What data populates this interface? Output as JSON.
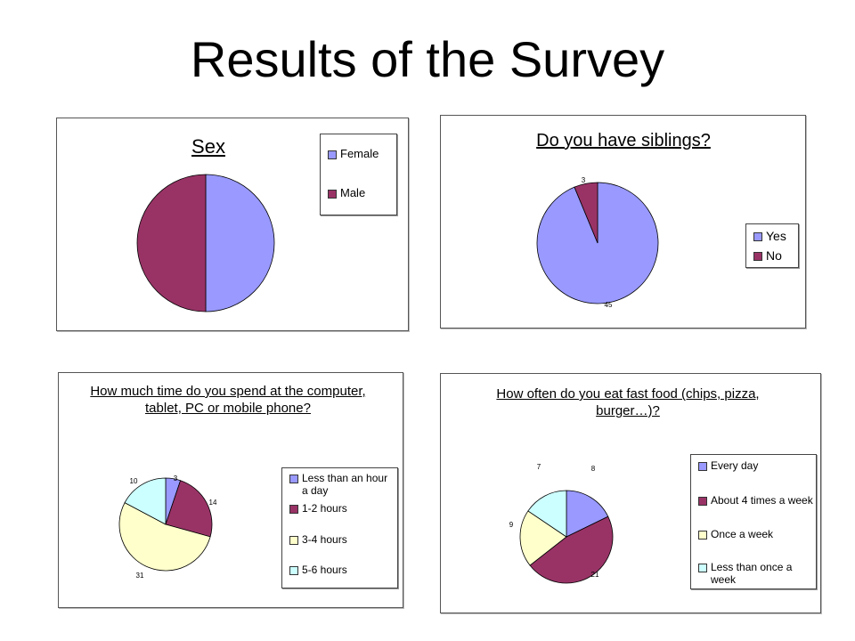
{
  "page": {
    "title": "Results of the Survey"
  },
  "chart_data": [
    {
      "type": "pie",
      "title": "Sex",
      "categories": [
        "Female",
        "Male"
      ],
      "values": [
        50,
        50
      ],
      "colors": [
        "#9999ff",
        "#993366"
      ],
      "data_labels": [
        "",
        ""
      ],
      "legend": "right"
    },
    {
      "type": "pie",
      "title": "Do you have siblings?",
      "categories": [
        "Yes",
        "No"
      ],
      "values": [
        45,
        3
      ],
      "colors": [
        "#9999ff",
        "#993366"
      ],
      "data_labels": [
        "45",
        "3"
      ],
      "legend": "right"
    },
    {
      "type": "pie",
      "title": "How much time do you spend at the computer, tablet, PC or mobile phone?",
      "categories": [
        "Less than an hour a day",
        "1-2 hours",
        "3-4 hours",
        "5-6 hours"
      ],
      "values": [
        3,
        14,
        31,
        10
      ],
      "colors": [
        "#9999ff",
        "#993366",
        "#ffffcc",
        "#ccffff"
      ],
      "data_labels": [
        "3",
        "14",
        "31",
        "10"
      ],
      "legend": "right"
    },
    {
      "type": "pie",
      "title": "How often do you eat fast food (chips, pizza, burger…)?",
      "categories": [
        "Every day",
        "About 4 times a week",
        "Once a week",
        "Less than once a week"
      ],
      "values": [
        8,
        21,
        9,
        7
      ],
      "colors": [
        "#9999ff",
        "#993366",
        "#ffffcc",
        "#ccffff"
      ],
      "data_labels": [
        "8",
        "21",
        "9",
        "7"
      ],
      "legend": "right"
    }
  ]
}
